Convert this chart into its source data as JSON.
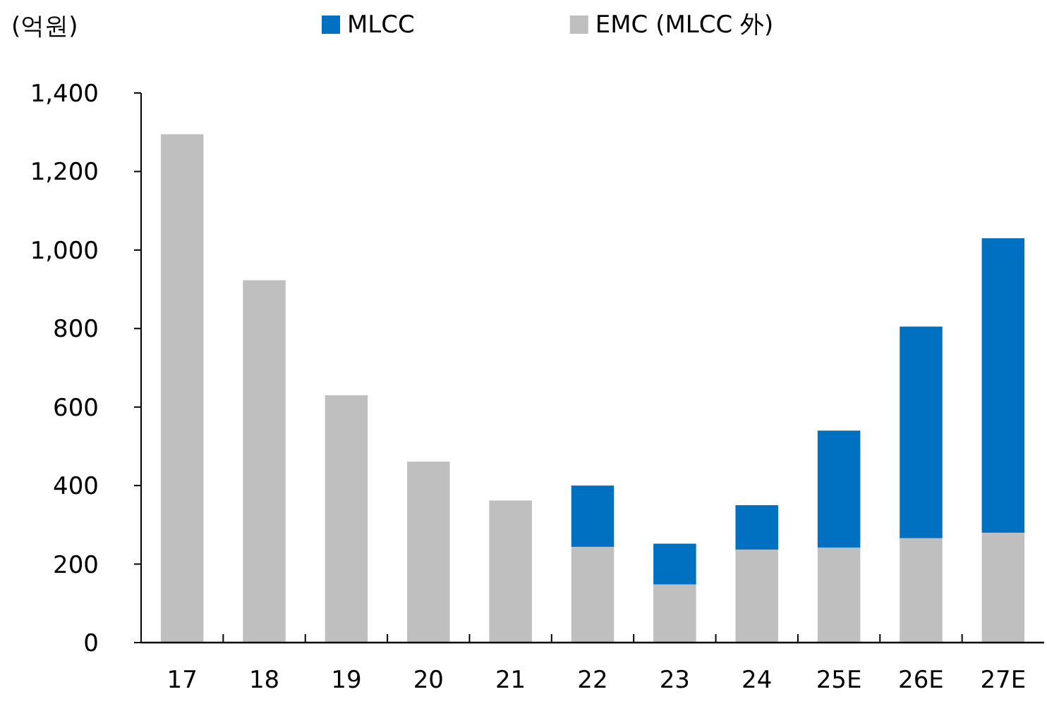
{
  "chart_data": {
    "type": "bar",
    "stacked": true,
    "ylabel": "(억원)",
    "categories": [
      "17",
      "18",
      "19",
      "20",
      "21",
      "22",
      "23",
      "24",
      "25E",
      "26E",
      "27E"
    ],
    "series": [
      {
        "name": "EMC (MLCC 外)",
        "color": "#bfbfbf",
        "values": [
          1295,
          923,
          630,
          461,
          362,
          244,
          148,
          237,
          242,
          266,
          280
        ]
      },
      {
        "name": "MLCC",
        "color": "#0070c0",
        "values": [
          null,
          null,
          null,
          null,
          null,
          156,
          104,
          113,
          298,
          539,
          750
        ]
      }
    ],
    "ylim": [
      0,
      1400
    ],
    "yticks": [
      {
        "value": 0,
        "label": "0"
      },
      {
        "value": 200,
        "label": "200"
      },
      {
        "value": 400,
        "label": "400"
      },
      {
        "value": 600,
        "label": "600"
      },
      {
        "value": 800,
        "label": "800"
      },
      {
        "value": 1000,
        "label": "1,000"
      },
      {
        "value": 1200,
        "label": "1,200"
      },
      {
        "value": 1400,
        "label": "1,400"
      }
    ],
    "legend": "top",
    "grid": false
  }
}
